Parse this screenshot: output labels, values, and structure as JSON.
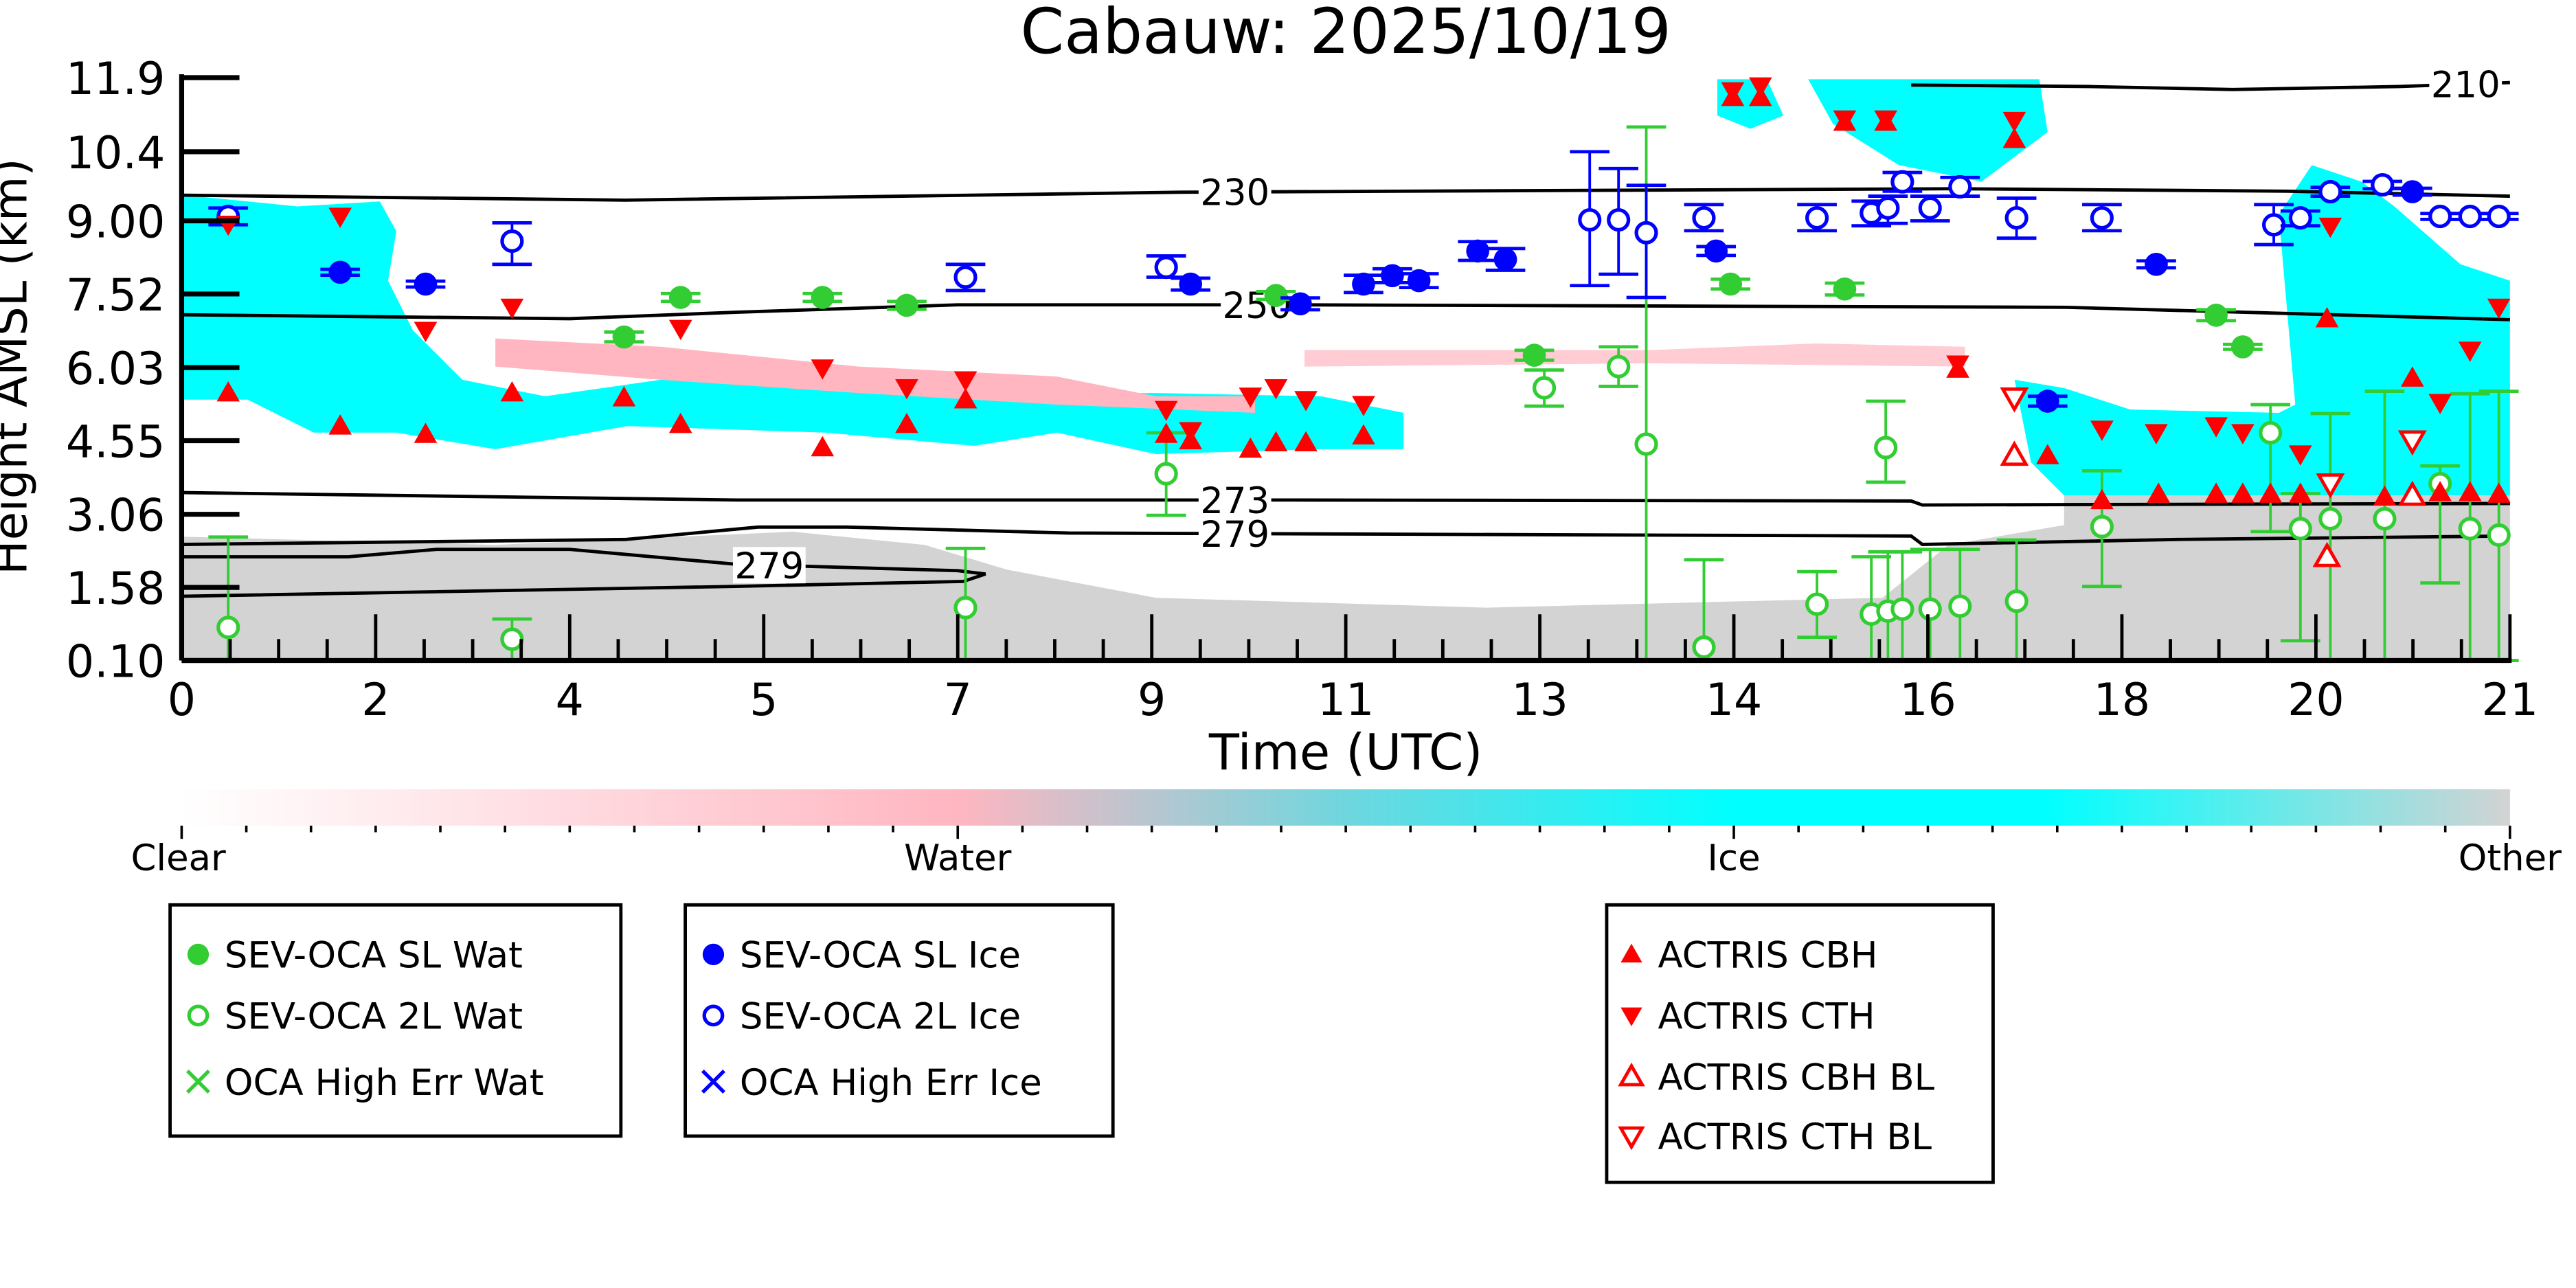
{
  "chart_data": {
    "type": "scatter",
    "title": "Cabauw: 2025/10/19",
    "xlabel": "Time (UTC)",
    "ylabel": "Height AMSL (km)",
    "xlim": [
      0,
      21
    ],
    "ylim": [
      0.1,
      11.9
    ],
    "x_tick_labels": [
      "0",
      "2",
      "4",
      "5",
      "7",
      "9",
      "11",
      "13",
      "14",
      "16",
      "18",
      "20",
      "21"
    ],
    "y_ticks": [
      0.1,
      1.58,
      3.06,
      4.55,
      6.03,
      7.52,
      9.0,
      10.4,
      11.9
    ],
    "y_tick_labels": [
      "0.10",
      "1.58",
      "3.06",
      "4.55",
      "6.03",
      "7.52",
      "9.00",
      "10.4",
      "11.9"
    ],
    "grid": false,
    "colorbar": {
      "labels": [
        "Clear",
        "Water",
        "Ice",
        "Other"
      ],
      "colors": [
        "#ffffff",
        "#ffb6c1",
        "#00ffff",
        "#d3d3d3"
      ]
    },
    "contours": [
      {
        "label": "230",
        "label_at": 9.5,
        "points": [
          [
            0,
            9.52
          ],
          [
            4,
            9.42
          ],
          [
            9,
            9.58
          ],
          [
            16,
            9.65
          ],
          [
            19,
            9.6
          ],
          [
            21,
            9.5
          ]
        ]
      },
      {
        "label": "250",
        "label_at": 9.7,
        "points": [
          [
            0,
            7.1
          ],
          [
            3.5,
            7.02
          ],
          [
            5,
            7.15
          ],
          [
            7,
            7.3
          ],
          [
            10,
            7.3
          ],
          [
            17,
            7.25
          ],
          [
            21,
            7.0
          ]
        ]
      },
      {
        "label": "273",
        "label_at": 9.5,
        "points": [
          [
            0,
            3.5
          ],
          [
            5,
            3.35
          ],
          [
            10,
            3.35
          ],
          [
            15.6,
            3.33
          ],
          [
            15.7,
            3.25
          ],
          [
            21,
            3.28
          ]
        ]
      },
      {
        "label": "279",
        "label_at": 9.5,
        "points": [
          [
            0,
            2.45
          ],
          [
            4,
            2.55
          ],
          [
            5.2,
            2.8
          ],
          [
            6,
            2.8
          ],
          [
            8,
            2.68
          ],
          [
            15.6,
            2.62
          ],
          [
            15.7,
            2.45
          ],
          [
            18,
            2.55
          ],
          [
            21,
            2.62
          ]
        ]
      },
      {
        "label": "279",
        "label_at": 5.3,
        "points": [
          [
            0,
            2.2
          ],
          [
            1.5,
            2.2
          ],
          [
            2.3,
            2.35
          ],
          [
            3.5,
            2.35
          ],
          [
            5,
            2.05
          ],
          [
            7,
            1.92
          ],
          [
            7.25,
            1.85
          ],
          [
            7.05,
            1.7
          ],
          [
            5,
            1.6
          ],
          [
            0,
            1.4
          ]
        ]
      },
      {
        "label": "210",
        "label_at": 20.6,
        "points": [
          [
            15.6,
            11.75
          ],
          [
            17.2,
            11.72
          ],
          [
            18.5,
            11.66
          ],
          [
            20,
            11.72
          ],
          [
            21,
            11.8
          ]
        ]
      }
    ],
    "series": [
      {
        "name": "SEV-OCA SL Wat",
        "color": "#32cd32",
        "marker": "filled-circle",
        "points": [
          [
            3.99,
            6.65,
            6.55,
            6.75
          ],
          [
            4.5,
            7.45,
            7.37,
            7.53
          ],
          [
            5.78,
            7.45,
            7.37,
            7.53
          ],
          [
            6.54,
            7.29,
            7.21,
            7.37
          ],
          [
            9.87,
            7.49,
            7.41,
            7.57
          ],
          [
            12.2,
            6.28,
            6.18,
            6.38
          ],
          [
            13.97,
            7.72,
            7.62,
            7.82
          ],
          [
            15.0,
            7.62,
            7.5,
            7.74
          ],
          [
            18.35,
            7.09,
            6.98,
            7.2
          ],
          [
            18.59,
            6.45,
            6.4,
            6.5
          ]
        ]
      },
      {
        "name": "SEV-OCA 2L Wat",
        "color": "#32cd32",
        "marker": "open-circle",
        "points": [
          [
            0.42,
            0.77,
            0.1,
            2.6
          ],
          [
            2.98,
            0.53,
            0.1,
            0.94
          ],
          [
            7.07,
            1.17,
            0.1,
            2.37
          ],
          [
            8.88,
            3.88,
            3.04,
            4.71
          ],
          [
            12.29,
            5.62,
            5.25,
            5.98
          ],
          [
            12.96,
            6.05,
            5.65,
            6.45
          ],
          [
            13.21,
            4.48,
            0.1,
            10.9
          ],
          [
            13.73,
            0.37,
            0.1,
            2.14
          ],
          [
            14.75,
            1.24,
            0.57,
            1.9
          ],
          [
            15.24,
            1.04,
            0.1,
            2.2
          ],
          [
            15.39,
            1.1,
            0.1,
            2.3
          ],
          [
            15.52,
            1.14,
            0.1,
            2.3
          ],
          [
            15.77,
            1.14,
            0.1,
            2.35
          ],
          [
            16.04,
            1.2,
            0.1,
            2.35
          ],
          [
            15.37,
            4.41,
            3.71,
            5.35
          ],
          [
            16.55,
            1.3,
            0.1,
            2.54
          ],
          [
            17.32,
            2.81,
            1.6,
            3.94
          ],
          [
            18.84,
            4.71,
            2.71,
            5.28
          ],
          [
            19.11,
            2.77,
            0.5,
            3.48
          ],
          [
            19.38,
            2.97,
            0.1,
            5.1
          ],
          [
            19.87,
            2.97,
            0.1,
            5.55
          ],
          [
            20.37,
            3.68,
            1.67,
            4.04
          ],
          [
            20.64,
            2.77,
            0.1,
            5.5
          ],
          [
            20.9,
            2.64,
            0.1,
            5.55
          ]
        ]
      },
      {
        "name": "OCA High Err Wat",
        "color": "#32cd32",
        "marker": "x",
        "points": []
      },
      {
        "name": "SEV-OCA SL Ice",
        "color": "#0000ff",
        "marker": "filled-circle",
        "points": [
          [
            1.43,
            7.96,
            7.9,
            8.02
          ],
          [
            2.2,
            7.72,
            7.66,
            7.78
          ],
          [
            9.1,
            7.72,
            7.6,
            7.84
          ],
          [
            10.09,
            7.32,
            7.2,
            7.44
          ],
          [
            10.66,
            7.72,
            7.55,
            7.9
          ],
          [
            10.92,
            7.89,
            7.75,
            8.03
          ],
          [
            11.16,
            7.79,
            7.65,
            7.93
          ],
          [
            11.69,
            8.39,
            8.2,
            8.58
          ],
          [
            11.94,
            8.22,
            8.0,
            8.44
          ],
          [
            13.84,
            8.39,
            8.3,
            8.48
          ],
          [
            16.83,
            5.35,
            5.25,
            5.45
          ],
          [
            17.81,
            8.12,
            8.05,
            8.19
          ],
          [
            20.12,
            9.59,
            9.52,
            9.66
          ]
        ]
      },
      {
        "name": "SEV-OCA 2L Ice",
        "color": "#0000ff",
        "marker": "open-circle",
        "points": [
          [
            0.42,
            9.09,
            8.92,
            9.26
          ],
          [
            2.98,
            8.59,
            8.12,
            8.96
          ],
          [
            7.07,
            7.86,
            7.59,
            8.12
          ],
          [
            8.88,
            8.06,
            7.86,
            8.29
          ],
          [
            12.7,
            9.02,
            7.69,
            10.4
          ],
          [
            12.96,
            9.02,
            7.92,
            10.06
          ],
          [
            13.21,
            8.76,
            7.45,
            9.72
          ],
          [
            13.73,
            9.06,
            8.8,
            9.33
          ],
          [
            14.75,
            9.06,
            8.8,
            9.33
          ],
          [
            15.24,
            9.16,
            8.9,
            9.4
          ],
          [
            15.39,
            9.26,
            8.95,
            9.5
          ],
          [
            15.52,
            9.79,
            9.6,
            9.98
          ],
          [
            15.77,
            9.26,
            9.0,
            9.5
          ],
          [
            16.04,
            9.69,
            9.5,
            9.88
          ],
          [
            16.55,
            9.06,
            8.65,
            9.46
          ],
          [
            17.32,
            9.06,
            8.8,
            9.33
          ],
          [
            18.87,
            8.92,
            8.52,
            9.33
          ],
          [
            19.11,
            9.06,
            8.9,
            9.2
          ],
          [
            19.38,
            9.59,
            9.5,
            9.68
          ],
          [
            19.85,
            9.73,
            9.65,
            9.8
          ],
          [
            20.37,
            9.09,
            9.03,
            9.15
          ],
          [
            20.64,
            9.09,
            9.03,
            9.15
          ],
          [
            20.9,
            9.09,
            9.03,
            9.15
          ]
        ]
      },
      {
        "name": "OCA High Err Ice",
        "color": "#0000ff",
        "marker": "x",
        "points": []
      },
      {
        "name": "ACTRIS CBH",
        "color": "#ff0000",
        "marker": "filled-triangle-up",
        "points": [
          [
            0.42,
            5.52
          ],
          [
            1.43,
            4.85
          ],
          [
            2.2,
            4.68
          ],
          [
            2.98,
            5.52
          ],
          [
            3.99,
            5.42
          ],
          [
            4.5,
            4.88
          ],
          [
            5.78,
            4.41
          ],
          [
            6.54,
            4.88
          ],
          [
            7.07,
            5.38
          ],
          [
            8.88,
            4.68
          ],
          [
            9.1,
            4.55
          ],
          [
            9.64,
            4.38
          ],
          [
            9.87,
            4.51
          ],
          [
            10.14,
            4.51
          ],
          [
            10.66,
            4.65
          ],
          [
            13.99,
            11.5
          ],
          [
            14.24,
            11.5
          ],
          [
            15.0,
            11.0
          ],
          [
            15.37,
            11.0
          ],
          [
            16.53,
            10.65
          ],
          [
            16.02,
            6.0
          ],
          [
            16.83,
            4.25
          ],
          [
            17.32,
            3.34
          ],
          [
            17.83,
            3.47
          ],
          [
            18.35,
            3.47
          ],
          [
            18.59,
            3.47
          ],
          [
            18.84,
            3.47
          ],
          [
            19.11,
            3.47
          ],
          [
            19.35,
            7.02
          ],
          [
            19.87,
            3.41
          ],
          [
            20.12,
            5.82
          ],
          [
            20.37,
            3.5
          ],
          [
            20.64,
            3.5
          ],
          [
            20.9,
            3.47
          ]
        ]
      },
      {
        "name": "ACTRIS CTH",
        "color": "#ff0000",
        "marker": "filled-triangle-down",
        "points": [
          [
            0.42,
            8.93
          ],
          [
            1.43,
            9.09
          ],
          [
            2.2,
            6.78
          ],
          [
            2.98,
            7.25
          ],
          [
            4.5,
            6.82
          ],
          [
            5.78,
            6.02
          ],
          [
            6.54,
            5.62
          ],
          [
            7.07,
            5.78
          ],
          [
            8.88,
            5.18
          ],
          [
            9.1,
            4.75
          ],
          [
            9.64,
            5.45
          ],
          [
            9.87,
            5.62
          ],
          [
            10.14,
            5.38
          ],
          [
            10.66,
            5.28
          ],
          [
            13.99,
            11.63
          ],
          [
            14.24,
            11.73
          ],
          [
            15.0,
            11.06
          ],
          [
            15.37,
            11.06
          ],
          [
            16.53,
            11.03
          ],
          [
            16.02,
            6.1
          ],
          [
            17.32,
            4.78
          ],
          [
            17.81,
            4.71
          ],
          [
            18.35,
            4.85
          ],
          [
            18.59,
            4.71
          ],
          [
            19.11,
            4.28
          ],
          [
            19.38,
            8.89
          ],
          [
            20.37,
            5.32
          ],
          [
            20.64,
            6.38
          ],
          [
            20.9,
            7.25
          ]
        ]
      },
      {
        "name": "ACTRIS CBH BL",
        "color": "#ff0000",
        "marker": "open-triangle-up",
        "points": [
          [
            16.53,
            4.25
          ],
          [
            19.35,
            2.2
          ],
          [
            20.12,
            3.44
          ]
        ]
      },
      {
        "name": "ACTRIS CTH BL",
        "color": "#ff0000",
        "marker": "open-triangle-down",
        "points": [
          [
            16.53,
            5.42
          ],
          [
            19.38,
            3.68
          ],
          [
            20.12,
            4.55
          ]
        ]
      }
    ]
  }
}
